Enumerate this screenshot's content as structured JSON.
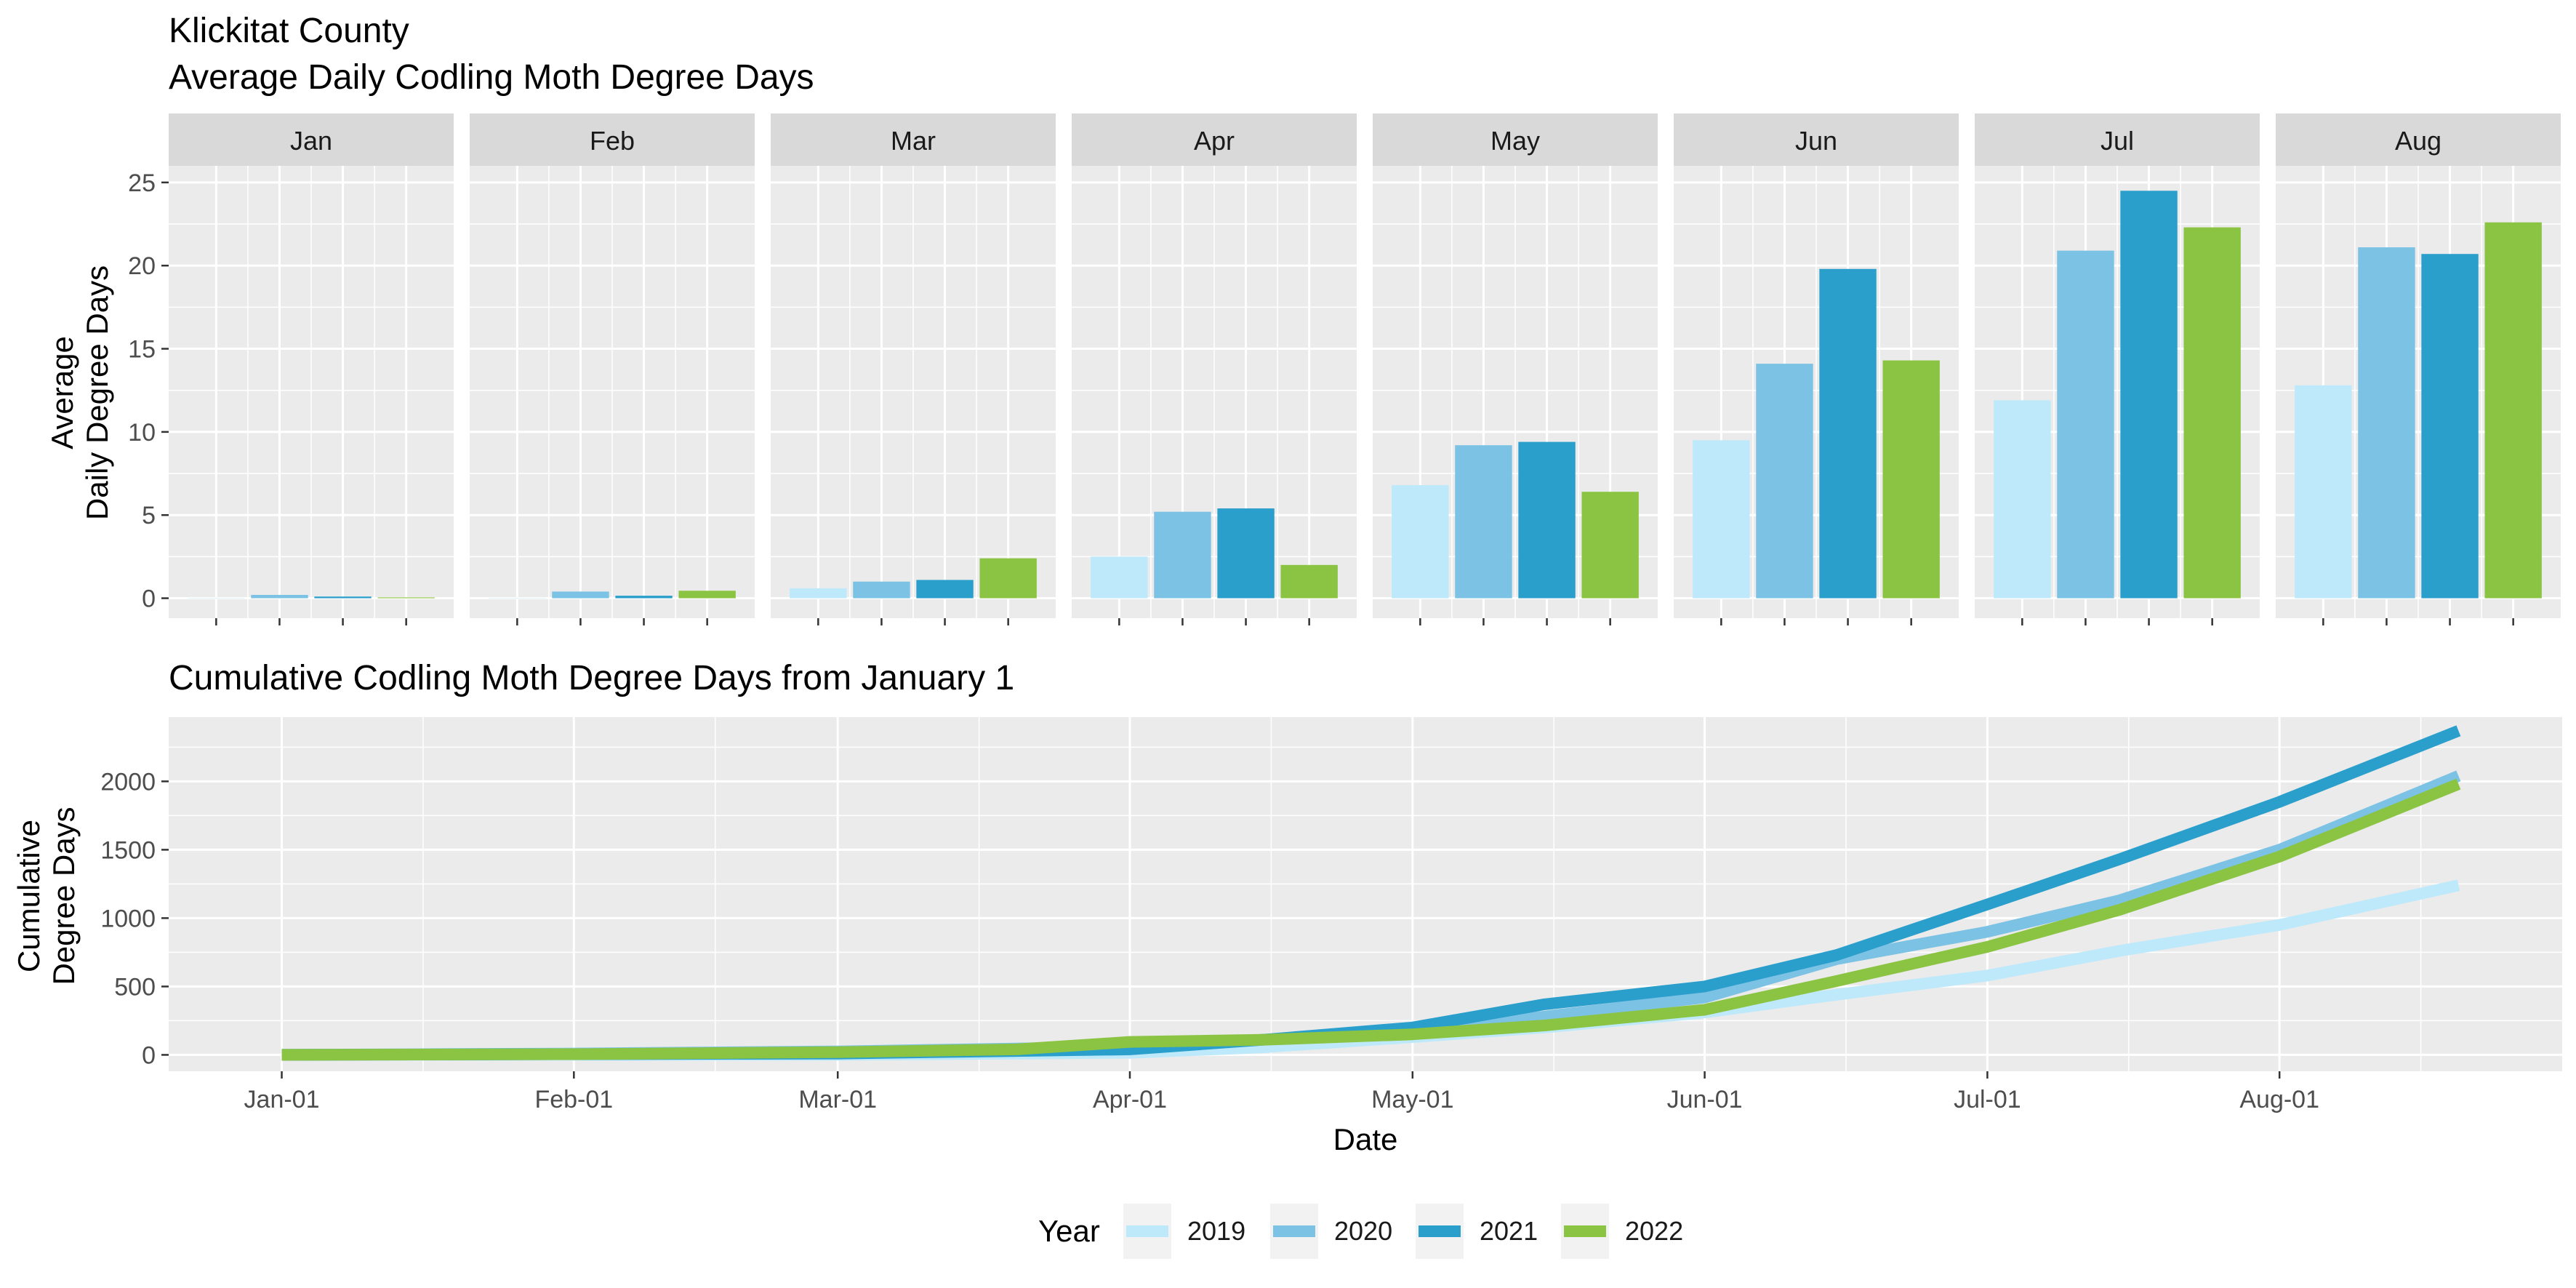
{
  "title": "Klickitat County",
  "subtitle": "Average Daily Codling Moth Degree Days",
  "colors": {
    "2019": "#bde9fb",
    "2020": "#7cc2e4",
    "2021": "#2a9fcc",
    "2022": "#8bc443",
    "panel_bg": "#ebebeb",
    "strip_bg": "#d9d9d9",
    "grid": "#ffffff"
  },
  "legend": {
    "title": "Year",
    "position": "bottom"
  },
  "chart_data": [
    {
      "type": "bar",
      "facet_by": "month",
      "ylabel": [
        "Average",
        "Daily Degree Days"
      ],
      "ylim": [
        -1.2,
        26
      ],
      "yticks": [
        0,
        5,
        10,
        15,
        20,
        25
      ],
      "grid": true,
      "months": [
        "Jan",
        "Feb",
        "Mar",
        "Apr",
        "May",
        "Jun",
        "Jul",
        "Aug"
      ],
      "series": [
        {
          "name": "2019",
          "values": [
            0.0,
            0.0,
            0.6,
            2.5,
            6.8,
            9.5,
            11.9,
            12.8
          ]
        },
        {
          "name": "2020",
          "values": [
            0.2,
            0.4,
            1.0,
            5.2,
            9.2,
            14.1,
            20.9,
            21.1
          ]
        },
        {
          "name": "2021",
          "values": [
            0.1,
            0.15,
            1.1,
            5.4,
            9.4,
            19.8,
            24.5,
            20.7
          ]
        },
        {
          "name": "2022",
          "values": [
            0.05,
            0.45,
            2.4,
            2.0,
            6.4,
            14.3,
            22.3,
            22.6
          ]
        }
      ]
    },
    {
      "type": "line",
      "title": "Cumulative Codling Moth Degree Days from January 1",
      "xlabel": "Date",
      "ylabel": [
        "Cumulative",
        "Degree Days"
      ],
      "xlim": [
        "2022-12-20",
        "2023-08-31"
      ],
      "xticks": [
        "Jan-01",
        "Feb-01",
        "Mar-01",
        "Apr-01",
        "May-01",
        "Jun-01",
        "Jul-01",
        "Aug-01"
      ],
      "xtick_dates": [
        "2023-01-01",
        "2023-02-01",
        "2023-03-01",
        "2023-04-01",
        "2023-05-01",
        "2023-06-01",
        "2023-07-01",
        "2023-08-01"
      ],
      "ylim": [
        -120,
        2470
      ],
      "yticks": [
        0,
        500,
        1000,
        1500,
        2000
      ],
      "grid": true,
      "series": [
        {
          "name": "2019",
          "x": [
            "2023-01-01",
            "2023-03-01",
            "2023-04-01",
            "2023-04-15",
            "2023-05-01",
            "2023-05-15",
            "2023-06-01",
            "2023-06-15",
            "2023-07-01",
            "2023-07-15",
            "2023-08-01",
            "2023-08-20"
          ],
          "y": [
            0,
            0,
            15,
            55,
            130,
            200,
            310,
            440,
            580,
            760,
            950,
            1240
          ]
        },
        {
          "name": "2020",
          "x": [
            "2023-01-01",
            "2023-02-01",
            "2023-03-01",
            "2023-04-01",
            "2023-04-15",
            "2023-05-01",
            "2023-05-15",
            "2023-06-01",
            "2023-06-15",
            "2023-07-01",
            "2023-07-15",
            "2023-08-01",
            "2023-08-20"
          ],
          "y": [
            0,
            10,
            25,
            60,
            110,
            180,
            280,
            420,
            700,
            900,
            1130,
            1500,
            2040
          ]
        },
        {
          "name": "2021",
          "x": [
            "2023-01-01",
            "2023-02-01",
            "2023-03-01",
            "2023-04-01",
            "2023-04-15",
            "2023-05-01",
            "2023-05-15",
            "2023-06-01",
            "2023-06-15",
            "2023-07-01",
            "2023-07-15",
            "2023-08-01",
            "2023-08-20"
          ],
          "y": [
            0,
            5,
            10,
            40,
            110,
            200,
            370,
            500,
            730,
            1100,
            1430,
            1850,
            2370
          ]
        },
        {
          "name": "2022",
          "x": [
            "2023-01-01",
            "2023-02-01",
            "2023-03-01",
            "2023-03-20",
            "2023-04-01",
            "2023-04-15",
            "2023-05-01",
            "2023-05-15",
            "2023-06-01",
            "2023-06-15",
            "2023-07-01",
            "2023-07-15",
            "2023-08-01",
            "2023-08-20"
          ],
          "y": [
            0,
            5,
            20,
            40,
            95,
            110,
            150,
            215,
            330,
            540,
            790,
            1060,
            1450,
            1980
          ]
        }
      ]
    }
  ]
}
